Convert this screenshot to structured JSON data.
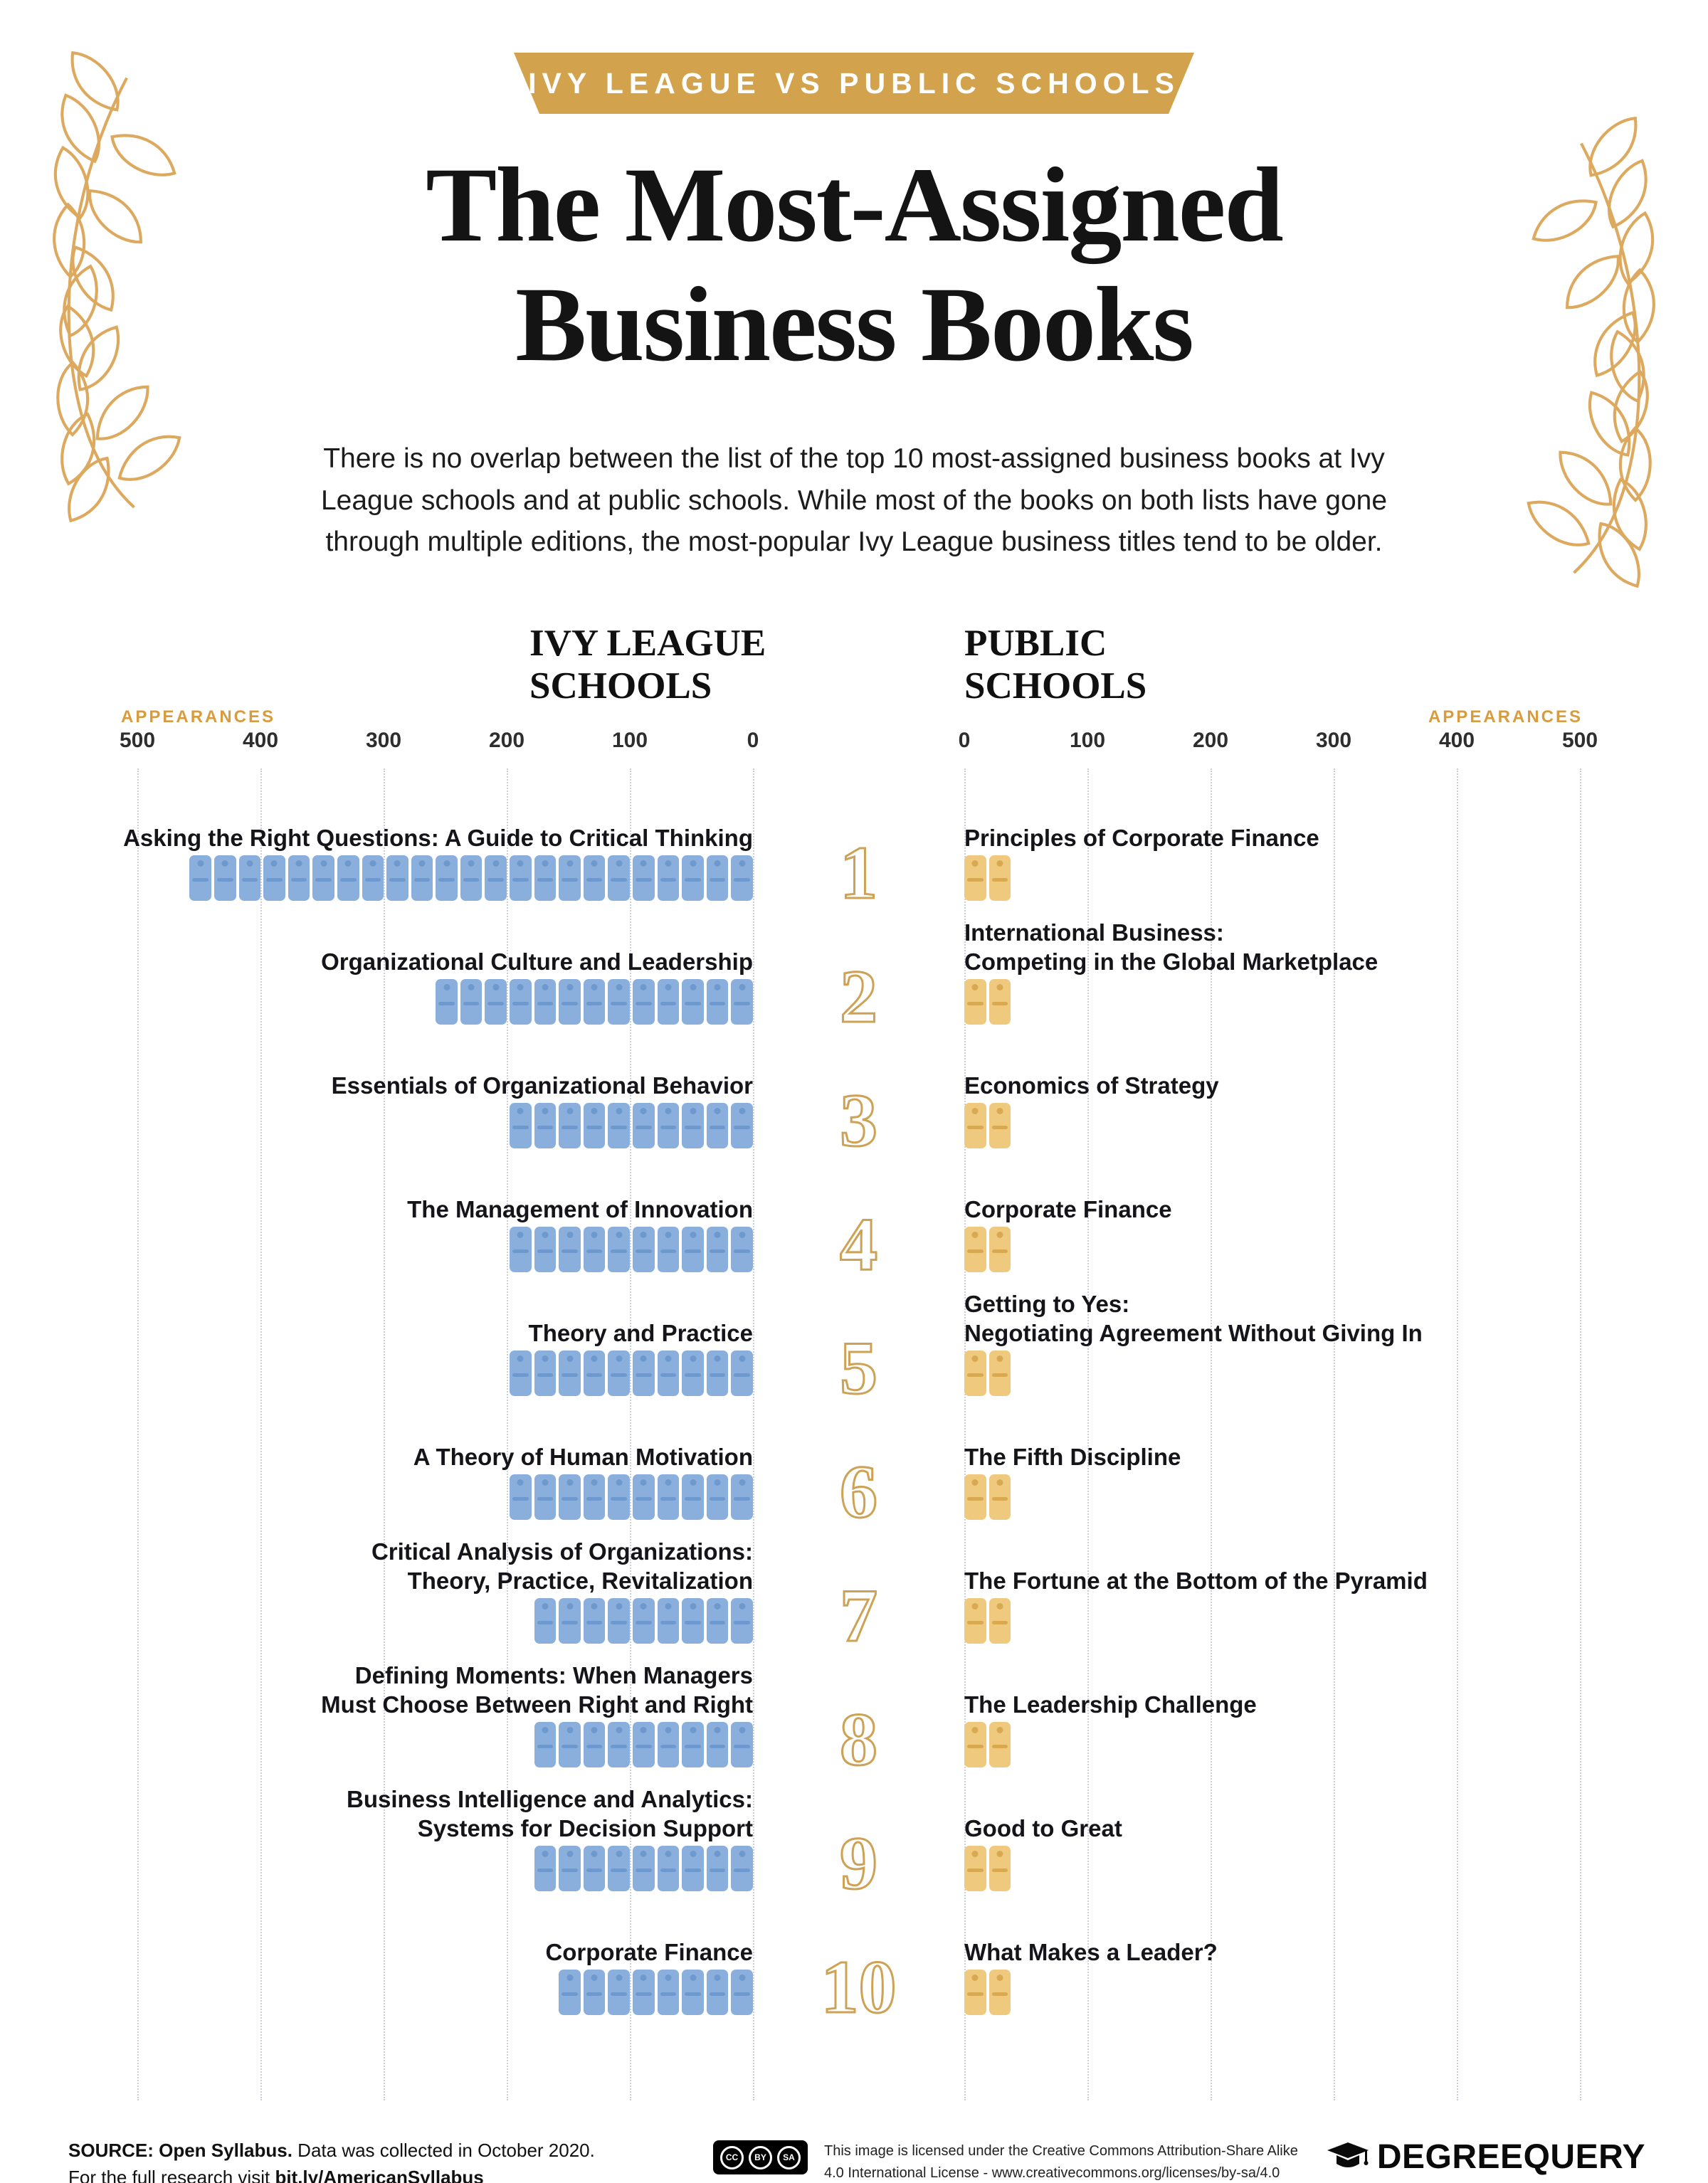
{
  "banner": {
    "label": "IVY LEAGUE VS PUBLIC SCHOOLS"
  },
  "title_line1": "The Most-Assigned",
  "title_line2": "Business Books",
  "subtitle": "There is no overlap between the list of the top 10 most-assigned business books at Ivy League schools and at public schools. While most of the books on both lists have gone through multiple editions, the most-popular Ivy League business titles tend to be older.",
  "chart_data": {
    "type": "bar",
    "unit_per_book_icon": 20,
    "axis_range": [
      0,
      500
    ],
    "grid": true,
    "left": {
      "heading": "IVY LEAGUE\nSCHOOLS",
      "appearances_label": "APPEARANCES",
      "axis_ticks": [
        500,
        400,
        300,
        200,
        100,
        0
      ],
      "series_name": "Ivy League Schools",
      "items": [
        {
          "rank": 1,
          "title": "Asking the Right Questions: A Guide to Critical Thinking",
          "value": 460
        },
        {
          "rank": 2,
          "title": "Organizational Culture and Leadership",
          "value": 260
        },
        {
          "rank": 3,
          "title": "Essentials of Organizational Behavior",
          "value": 200
        },
        {
          "rank": 4,
          "title": "The Management of Innovation",
          "value": 200
        },
        {
          "rank": 5,
          "title": "Theory and Practice",
          "value": 200
        },
        {
          "rank": 6,
          "title": "A Theory of Human Motivation",
          "value": 200
        },
        {
          "rank": 7,
          "title": "Critical Analysis of Organizations:\nTheory, Practice, Revitalization",
          "value": 180
        },
        {
          "rank": 8,
          "title": "Defining Moments: When Managers\nMust Choose Between Right and Right",
          "value": 180
        },
        {
          "rank": 9,
          "title": "Business Intelligence and Analytics:\nSystems for Decision Support",
          "value": 180
        },
        {
          "rank": 10,
          "title": "Corporate Finance",
          "value": 160
        }
      ]
    },
    "right": {
      "heading": "PUBLIC\nSCHOOLS",
      "appearances_label": "APPEARANCES",
      "axis_ticks": [
        0,
        100,
        200,
        300,
        400,
        500
      ],
      "series_name": "Public Schools",
      "items": [
        {
          "rank": 1,
          "title": "Principles of Corporate Finance",
          "value": 40
        },
        {
          "rank": 2,
          "title": "International Business:\nCompeting in the Global Marketplace",
          "value": 40
        },
        {
          "rank": 3,
          "title": "Economics of Strategy",
          "value": 40
        },
        {
          "rank": 4,
          "title": "Corporate Finance",
          "value": 40
        },
        {
          "rank": 5,
          "title": "Getting to Yes:\nNegotiating Agreement Without Giving In",
          "value": 40
        },
        {
          "rank": 6,
          "title": "The Fifth Discipline",
          "value": 40
        },
        {
          "rank": 7,
          "title": "The Fortune at the Bottom of the Pyramid",
          "value": 40
        },
        {
          "rank": 8,
          "title": "The Leadership Challenge",
          "value": 40
        },
        {
          "rank": 9,
          "title": "Good to Great",
          "value": 40
        },
        {
          "rank": 10,
          "title": "What Makes a Leader?",
          "value": 40
        }
      ]
    }
  },
  "footer": {
    "source_bold": "SOURCE: Open Syllabus.",
    "source_rest": " Data was collected in October 2020.",
    "research_prefix": "For the full research visit ",
    "research_link": "bit.ly/AmericanSyllabus",
    "cc_badges": [
      "CC",
      "BY",
      "SA"
    ],
    "license_text": "This image is licensed under the Creative Commons Attribution-Share Alike\n4.0 International License - www.creativecommons.org/licenses/by-sa/4.0",
    "brand_part1": "DEGREE",
    "brand_part2": "QUERY"
  },
  "colors": {
    "gold_accent": "#D2A24C",
    "appearances_gold": "#D89C3E",
    "blue_book": "#8BAFDC",
    "blue_book_dark": "#6D99CE",
    "gold_book": "#EFC97D",
    "gold_book_dark": "#D8A951",
    "numeral_outline": "#CDA254"
  }
}
